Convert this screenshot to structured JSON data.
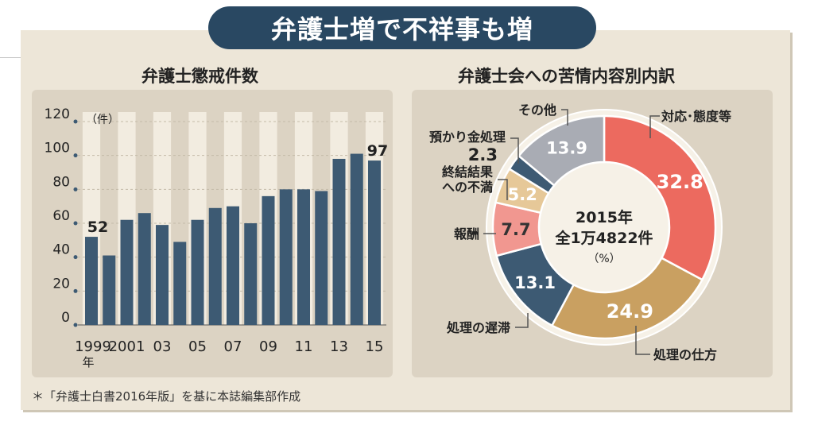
{
  "title": "弁護士増で不祥事も増",
  "source_note": "＊「弁護士白書2016年版」を基に本誌編集部作成",
  "colors": {
    "banner": "#294862",
    "bar": "#3d5a73",
    "panel_bg": "#ede6d8",
    "chart_bg": "#dcd3c3"
  },
  "chart_data": [
    {
      "type": "bar",
      "title": "弁護士懲戒件数",
      "unit_label": "（件）",
      "x": [
        "1999",
        "2000",
        "2001",
        "2002",
        "2003",
        "2004",
        "2005",
        "2006",
        "2007",
        "2008",
        "2009",
        "2010",
        "2011",
        "2012",
        "2013",
        "2014",
        "2015"
      ],
      "x_tick_labels": [
        "1999",
        "2001",
        "03",
        "05",
        "07",
        "09",
        "11",
        "13",
        "15"
      ],
      "x_tick_indices": [
        0,
        2,
        4,
        6,
        8,
        10,
        12,
        14,
        16
      ],
      "x_year_suffix": "年",
      "values": [
        52,
        41,
        62,
        66,
        59,
        49,
        62,
        69,
        70,
        60,
        76,
        80,
        80,
        79,
        98,
        101,
        97
      ],
      "data_labels": [
        {
          "index": 0,
          "text": "52"
        },
        {
          "index": 16,
          "text": "97"
        }
      ],
      "y_ticks": [
        "0",
        "20",
        "40",
        "60",
        "80",
        "100",
        "120"
      ],
      "ylim": [
        0,
        120
      ],
      "grid": true
    },
    {
      "type": "pie",
      "title": "弁護士会への苦情内容別内訳",
      "center_lines": [
        "2015年",
        "全1万4822件",
        "（%）"
      ],
      "slices": [
        {
          "label": "対応･態度等",
          "value": 32.8,
          "color": "#ec6a5f",
          "text_color": "#ffffff"
        },
        {
          "label": "処理の仕方",
          "value": 24.9,
          "color": "#c9a061",
          "text_color": "#ffffff"
        },
        {
          "label": "処理の遅滞",
          "value": 13.1,
          "color": "#3d5a73",
          "text_color": "#ffffff"
        },
        {
          "label": "報酬",
          "value": 7.7,
          "color": "#f19790",
          "text_color": "#333333"
        },
        {
          "label": "終結結果への不満",
          "value": 5.2,
          "color": "#e6c898",
          "text_color": "#ffffff"
        },
        {
          "label": "預かり金処理",
          "value": 2.3,
          "color": "#3d5a73",
          "text_color": "#222222"
        },
        {
          "label": "その他",
          "value": 13.9,
          "color": "#a9acb4",
          "text_color": "#ffffff"
        }
      ]
    }
  ]
}
